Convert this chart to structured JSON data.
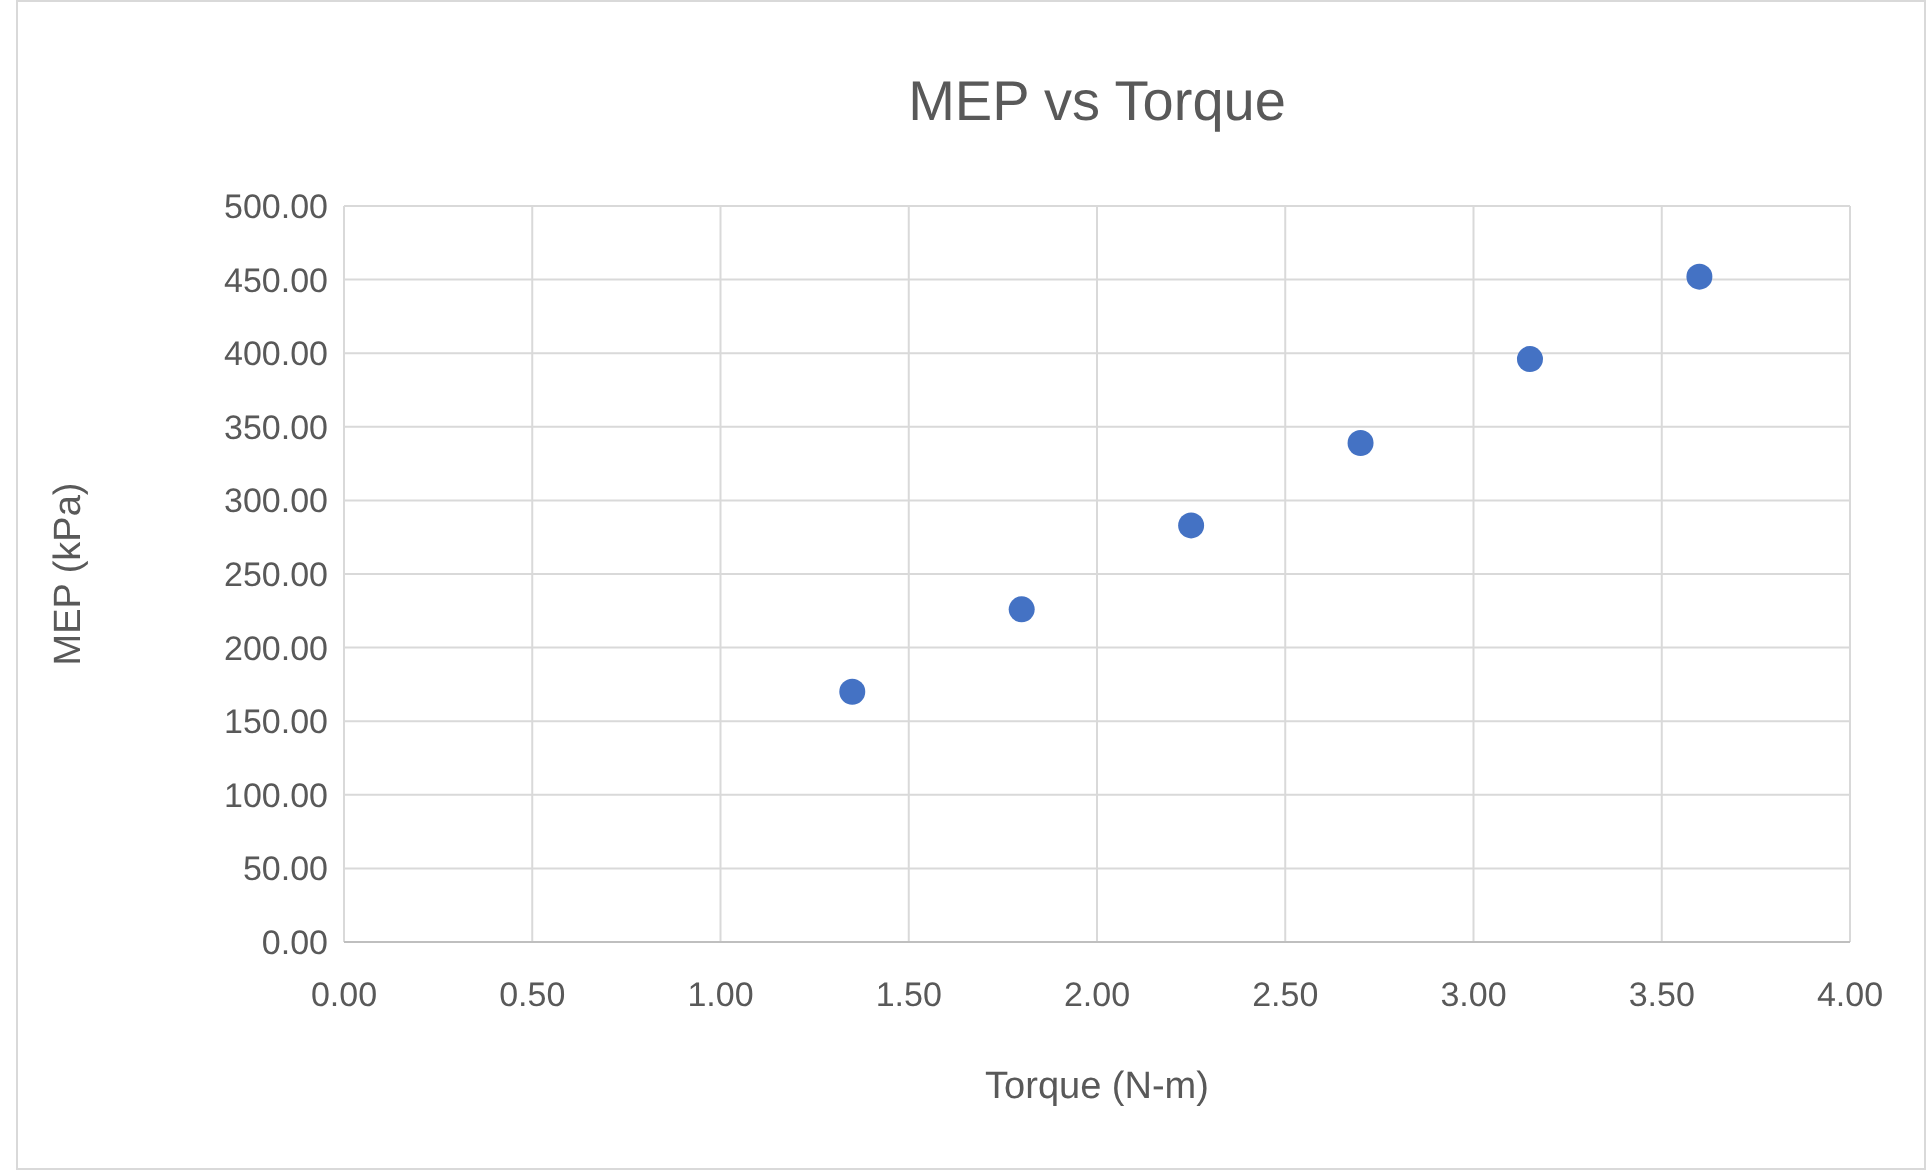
{
  "chart_data": {
    "type": "scatter",
    "title": "MEP vs Torque",
    "xlabel": "Torque (N-m)",
    "ylabel": "MEP (kPa)",
    "x": [
      1.35,
      1.8,
      2.25,
      2.7,
      3.15,
      3.6
    ],
    "series": [
      {
        "color": "#4472c4",
        "values": [
          170,
          226,
          283,
          339,
          396,
          452
        ]
      }
    ],
    "xlim": [
      0,
      4
    ],
    "xticks": [
      {
        "value": 0,
        "label": "0.00"
      },
      {
        "value": 0.5,
        "label": "0.50"
      },
      {
        "value": 1,
        "label": "1.00"
      },
      {
        "value": 1.5,
        "label": "1.50"
      },
      {
        "value": 2,
        "label": "2.00"
      },
      {
        "value": 2.5,
        "label": "2.50"
      },
      {
        "value": 3,
        "label": "3.00"
      },
      {
        "value": 3.5,
        "label": "3.50"
      },
      {
        "value": 4,
        "label": "4.00"
      }
    ],
    "ylim": [
      0,
      500
    ],
    "yticks": [
      {
        "value": 0,
        "label": "0.00"
      },
      {
        "value": 50,
        "label": "50.00"
      },
      {
        "value": 100,
        "label": "100.00"
      },
      {
        "value": 150,
        "label": "150.00"
      },
      {
        "value": 200,
        "label": "200.00"
      },
      {
        "value": 250,
        "label": "250.00"
      },
      {
        "value": 300,
        "label": "300.00"
      },
      {
        "value": 350,
        "label": "350.00"
      },
      {
        "value": 400,
        "label": "400.00"
      },
      {
        "value": 450,
        "label": "450.00"
      },
      {
        "value": 500,
        "label": "500.00"
      }
    ],
    "grid": true,
    "marker": "circle"
  }
}
